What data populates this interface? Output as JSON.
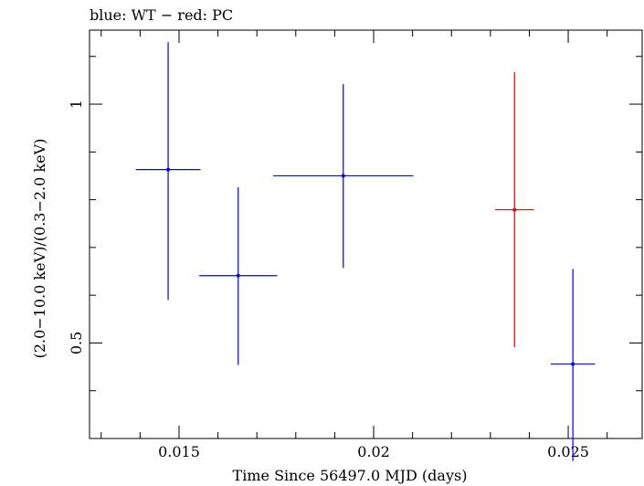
{
  "chart_data": {
    "type": "scatter",
    "title": "blue: WT − red: PC",
    "xlabel": "Time Since 56497.0 MJD (days)",
    "ylabel": "(2.0−10.0 keV)/(0.3−2.0 keV)",
    "xlim": [
      0.0127,
      0.0269
    ],
    "ylim": [
      0.3,
      1.155
    ],
    "x_major_ticks": [
      0.015,
      0.02,
      0.025
    ],
    "x_tick_labels": [
      "0.015",
      "0.02",
      "0.025"
    ],
    "y_major_ticks": [
      0.5,
      1.0
    ],
    "y_tick_labels": [
      "0.5",
      "1"
    ],
    "series": [
      {
        "name": "WT",
        "color": "#0000ee",
        "points": [
          {
            "x": 0.01472,
            "xerr": 0.00083,
            "y": 0.863,
            "yerr_low": 0.273,
            "yerr_high": 0.267
          },
          {
            "x": 0.01652,
            "xerr": 0.001,
            "y": 0.641,
            "yerr_low": 0.187,
            "yerr_high": 0.185
          },
          {
            "x": 0.01922,
            "xerr": 0.0018,
            "y": 0.85,
            "yerr_low": 0.193,
            "yerr_high": 0.192
          },
          {
            "x": 0.02512,
            "xerr": 0.00057,
            "y": 0.456,
            "yerr_low": 0.203,
            "yerr_high": 0.199
          }
        ]
      },
      {
        "name": "PC",
        "color": "#ee0000",
        "points": [
          {
            "x": 0.02362,
            "xerr": 0.0005,
            "y": 0.779,
            "yerr_low": 0.288,
            "yerr_high": 0.288
          }
        ]
      }
    ]
  }
}
